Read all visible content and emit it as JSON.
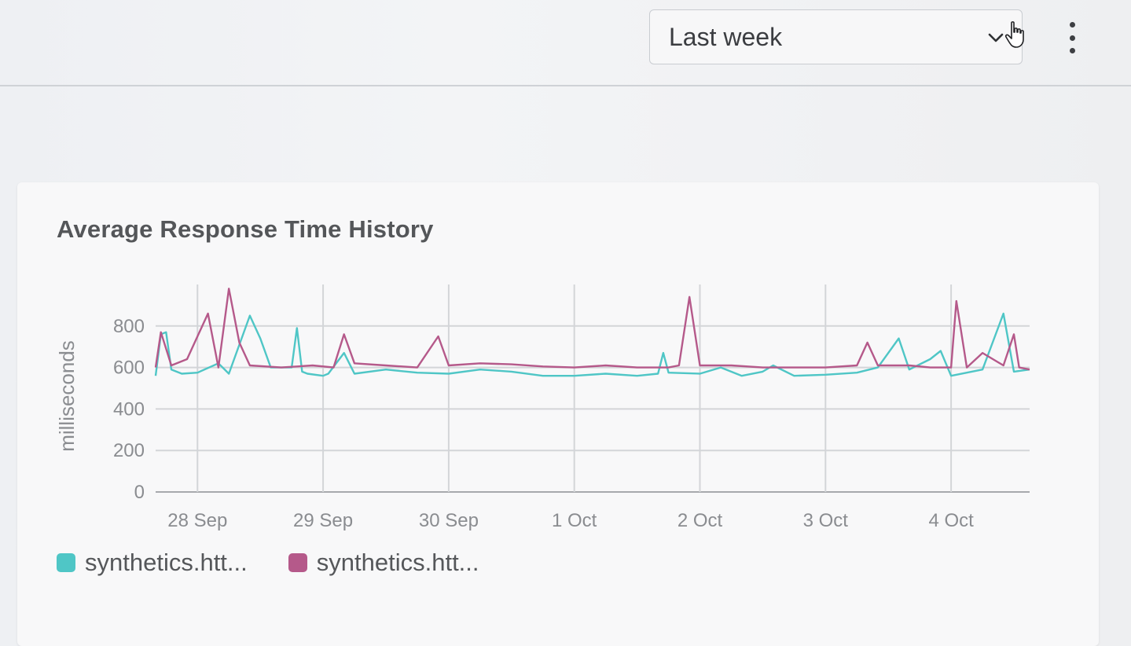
{
  "header": {
    "time_range": {
      "selected": "Last week"
    }
  },
  "colors": {
    "series_a": "#4fc6c6",
    "series_b": "#b5598a",
    "grid": "#d3d5d8",
    "axis": "#a7a9ad"
  },
  "icons": {
    "dropdown": "chevron-down-icon",
    "menu": "more-vertical-icon",
    "pointer": "hand-cursor-icon"
  },
  "chart_data": {
    "type": "line",
    "title": "Average Response Time History",
    "ylabel": "milliseconds",
    "xlabel": "",
    "ylim": [
      0,
      1000
    ],
    "yticks": [
      0,
      200,
      400,
      600,
      800
    ],
    "xlim": [
      "2023-09-27T16:00",
      "2023-10-04T15:00"
    ],
    "xticks": [
      {
        "at": "2023-09-28T00:00",
        "label": "28 Sep"
      },
      {
        "at": "2023-09-29T00:00",
        "label": "29 Sep"
      },
      {
        "at": "2023-09-30T00:00",
        "label": "30 Sep"
      },
      {
        "at": "2023-10-01T00:00",
        "label": "1 Oct"
      },
      {
        "at": "2023-10-02T00:00",
        "label": "2 Oct"
      },
      {
        "at": "2023-10-03T00:00",
        "label": "3 Oct"
      },
      {
        "at": "2023-10-04T00:00",
        "label": "4 Oct"
      }
    ],
    "grid": true,
    "legend_position": "bottom-left",
    "series": [
      {
        "name": "synthetics.htt...",
        "color": "#4fc6c6",
        "points": [
          [
            "2023-09-27T16:00",
            560
          ],
          [
            "2023-09-27T17:00",
            760
          ],
          [
            "2023-09-27T18:00",
            770
          ],
          [
            "2023-09-27T19:00",
            590
          ],
          [
            "2023-09-27T21:00",
            570
          ],
          [
            "2023-09-28T00:00",
            575
          ],
          [
            "2023-09-28T04:00",
            620
          ],
          [
            "2023-09-28T06:00",
            570
          ],
          [
            "2023-09-28T10:00",
            850
          ],
          [
            "2023-09-28T12:00",
            740
          ],
          [
            "2023-09-28T14:00",
            600
          ],
          [
            "2023-09-28T20:00",
            580
          ],
          [
            "2023-09-29T00:00",
            560
          ],
          [
            "2023-09-28T18:00",
            600
          ],
          [
            "2023-09-28T19:00",
            790
          ],
          [
            "2023-09-28T21:00",
            570
          ],
          [
            "2023-09-29T01:00",
            570
          ],
          [
            "2023-09-29T04:00",
            670
          ],
          [
            "2023-09-29T06:00",
            570
          ],
          [
            "2023-09-29T12:00",
            590
          ],
          [
            "2023-09-29T18:00",
            575
          ],
          [
            "2023-09-30T00:00",
            570
          ],
          [
            "2023-09-30T06:00",
            590
          ],
          [
            "2023-09-30T12:00",
            580
          ],
          [
            "2023-09-30T18:00",
            560
          ],
          [
            "2023-10-01T00:00",
            560
          ],
          [
            "2023-10-01T06:00",
            570
          ],
          [
            "2023-10-01T12:00",
            560
          ],
          [
            "2023-10-01T16:00",
            570
          ],
          [
            "2023-10-01T17:00",
            670
          ],
          [
            "2023-10-01T18:00",
            575
          ],
          [
            "2023-10-02T00:00",
            570
          ],
          [
            "2023-10-02T04:00",
            600
          ],
          [
            "2023-10-02T08:00",
            560
          ],
          [
            "2023-10-02T12:00",
            580
          ],
          [
            "2023-10-02T14:00",
            610
          ],
          [
            "2023-10-02T18:00",
            560
          ],
          [
            "2023-10-03T00:00",
            565
          ],
          [
            "2023-10-03T06:00",
            575
          ],
          [
            "2023-10-03T10:00",
            600
          ],
          [
            "2023-10-03T14:00",
            740
          ],
          [
            "2023-10-03T16:00",
            590
          ],
          [
            "2023-10-03T20:00",
            640
          ],
          [
            "2023-10-03T22:00",
            680
          ],
          [
            "2023-10-04T00:00",
            560
          ],
          [
            "2023-10-04T06:00",
            590
          ],
          [
            "2023-10-04T10:00",
            860
          ],
          [
            "2023-10-04T12:00",
            580
          ],
          [
            "2023-10-04T15:00",
            590
          ]
        ]
      },
      {
        "name": "synthetics.htt...",
        "color": "#b5598a",
        "points": [
          [
            "2023-09-27T16:00",
            600
          ],
          [
            "2023-09-27T17:00",
            770
          ],
          [
            "2023-09-27T19:00",
            610
          ],
          [
            "2023-09-27T22:00",
            640
          ],
          [
            "2023-09-28T02:00",
            860
          ],
          [
            "2023-09-28T04:00",
            600
          ],
          [
            "2023-09-28T06:00",
            980
          ],
          [
            "2023-09-28T08:00",
            720
          ],
          [
            "2023-09-28T10:00",
            610
          ],
          [
            "2023-09-28T16:00",
            600
          ],
          [
            "2023-09-28T22:00",
            610
          ],
          [
            "2023-09-29T02:00",
            600
          ],
          [
            "2023-09-29T04:00",
            760
          ],
          [
            "2023-09-29T06:00",
            620
          ],
          [
            "2023-09-29T12:00",
            610
          ],
          [
            "2023-09-29T18:00",
            600
          ],
          [
            "2023-09-29T22:00",
            750
          ],
          [
            "2023-09-30T00:00",
            610
          ],
          [
            "2023-09-30T06:00",
            620
          ],
          [
            "2023-09-30T12:00",
            615
          ],
          [
            "2023-09-30T18:00",
            605
          ],
          [
            "2023-10-01T00:00",
            600
          ],
          [
            "2023-10-01T06:00",
            610
          ],
          [
            "2023-10-01T12:00",
            600
          ],
          [
            "2023-10-01T18:00",
            600
          ],
          [
            "2023-10-01T20:00",
            610
          ],
          [
            "2023-10-01T22:00",
            940
          ],
          [
            "2023-10-02T00:00",
            610
          ],
          [
            "2023-10-02T06:00",
            610
          ],
          [
            "2023-10-02T12:00",
            600
          ],
          [
            "2023-10-02T18:00",
            600
          ],
          [
            "2023-10-03T00:00",
            600
          ],
          [
            "2023-10-03T06:00",
            610
          ],
          [
            "2023-10-03T08:00",
            720
          ],
          [
            "2023-10-03T10:00",
            610
          ],
          [
            "2023-10-03T16:00",
            610
          ],
          [
            "2023-10-03T20:00",
            600
          ],
          [
            "2023-10-04T00:00",
            600
          ],
          [
            "2023-10-04T01:00",
            920
          ],
          [
            "2023-10-04T03:00",
            600
          ],
          [
            "2023-10-04T06:00",
            670
          ],
          [
            "2023-10-04T10:00",
            610
          ],
          [
            "2023-10-04T12:00",
            760
          ],
          [
            "2023-10-04T13:00",
            600
          ],
          [
            "2023-10-04T15:00",
            590
          ]
        ]
      }
    ]
  }
}
